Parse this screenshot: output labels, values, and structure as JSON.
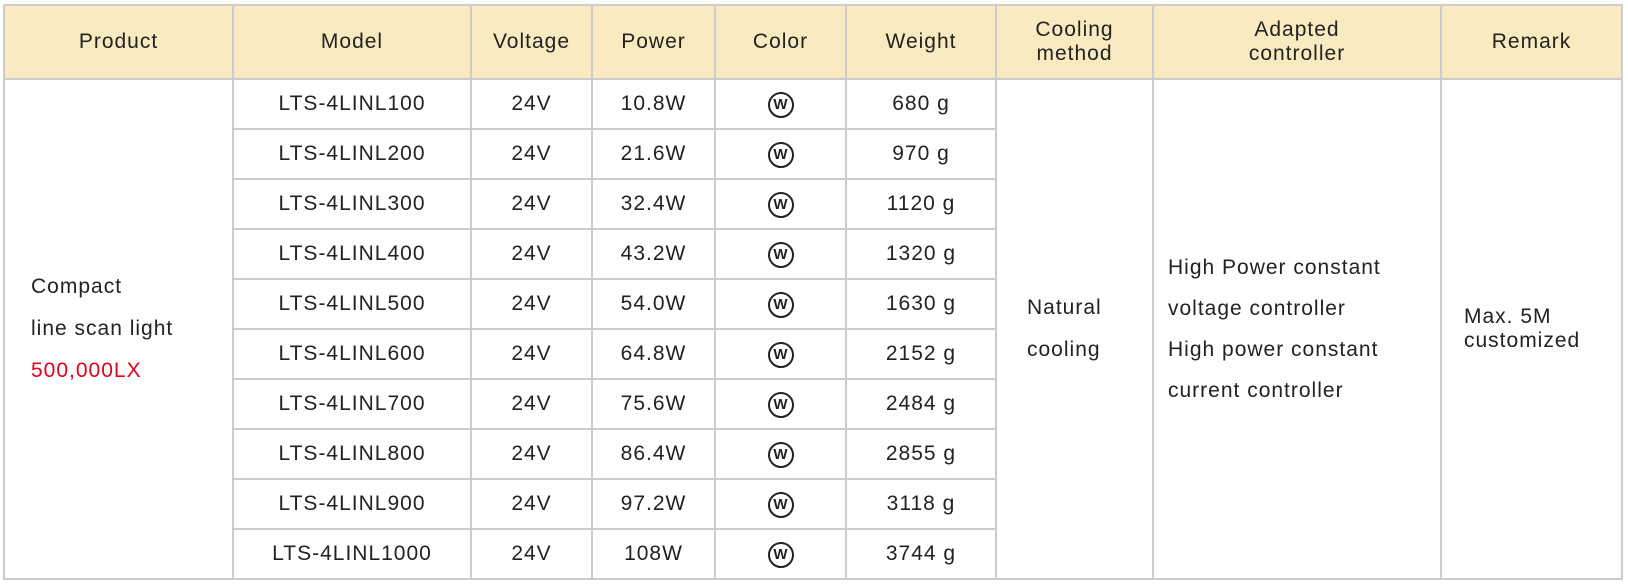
{
  "headers": [
    "Product",
    "Model",
    "Voltage",
    "Power",
    "Color",
    "Weight",
    "Cooling\nmethod",
    "Adapted\ncontroller",
    "Remark"
  ],
  "product": {
    "line1": "Compact",
    "line2": "line scan light",
    "lux": "500,000LX"
  },
  "rows": [
    {
      "model": "LTS-4LINL100",
      "voltage": "24V",
      "power": "10.8W",
      "color": "W",
      "weight": "680 g"
    },
    {
      "model": "LTS-4LINL200",
      "voltage": "24V",
      "power": "21.6W",
      "color": "W",
      "weight": "970 g"
    },
    {
      "model": "LTS-4LINL300",
      "voltage": "24V",
      "power": "32.4W",
      "color": "W",
      "weight": "1120 g"
    },
    {
      "model": "LTS-4LINL400",
      "voltage": "24V",
      "power": "43.2W",
      "color": "W",
      "weight": "1320 g"
    },
    {
      "model": "LTS-4LINL500",
      "voltage": "24V",
      "power": "54.0W",
      "color": "W",
      "weight": "1630 g"
    },
    {
      "model": "LTS-4LINL600",
      "voltage": "24V",
      "power": "64.8W",
      "color": "W",
      "weight": "2152 g"
    },
    {
      "model": "LTS-4LINL700",
      "voltage": "24V",
      "power": "75.6W",
      "color": "W",
      "weight": "2484 g"
    },
    {
      "model": "LTS-4LINL800",
      "voltage": "24V",
      "power": "86.4W",
      "color": "W",
      "weight": "2855 g"
    },
    {
      "model": "LTS-4LINL900",
      "voltage": "24V",
      "power": "97.2W",
      "color": "W",
      "weight": "3118 g"
    },
    {
      "model": "LTS-4LINL1000",
      "voltage": "24V",
      "power": "108W",
      "color": "W",
      "weight": "3744 g"
    }
  ],
  "cooling": {
    "line1": "Natural",
    "line2": "cooling"
  },
  "controller": {
    "line1": "High Power constant",
    "line2": "voltage controller",
    "line3": "High power constant",
    "line4": "current controller"
  },
  "remark": {
    "line1": "Max.  5M",
    "line2": "customized"
  },
  "colors": {
    "header_bg": "#f9eabf",
    "border": "#cccccc",
    "accent_red": "#e3001b"
  }
}
